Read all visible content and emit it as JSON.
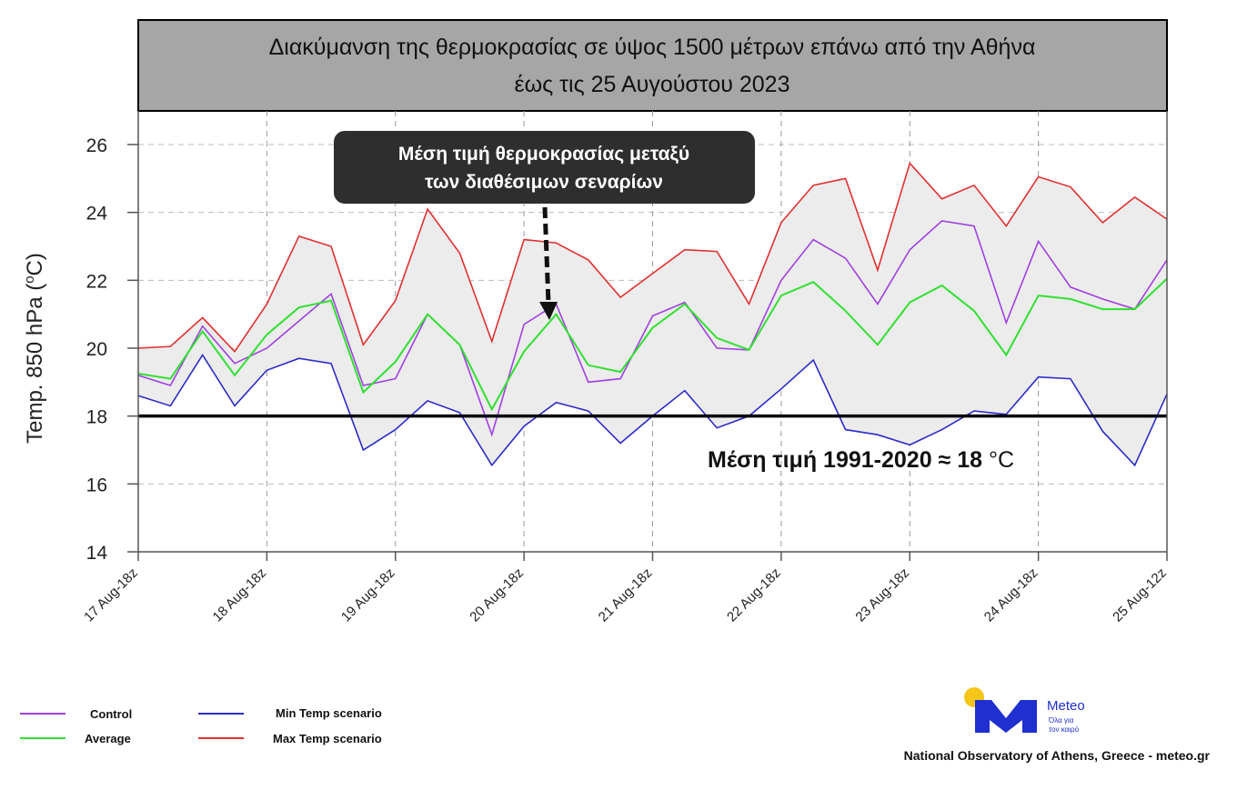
{
  "chart_data": {
    "type": "line",
    "title": [
      "Διακύμανση της θερμοκρασίας σε ύψος 1500 μέτρων επάνω από την Αθήνα",
      "έως τις 25 Αυγούστου 2023"
    ],
    "ylabel": "Temp. 850 hPa (°C)",
    "ylabel_parts": {
      "main": "Temp. 850 hPa (",
      "sup": "o",
      "unit": "C)"
    },
    "ylim": [
      14,
      26.7
    ],
    "yticks": [
      14,
      16,
      18,
      20,
      22,
      24,
      26
    ],
    "x_step": "6-hourly",
    "xtick_labels": [
      "17 Aug-18z",
      "18 Aug-18z",
      "19 Aug-18z",
      "20 Aug-18z",
      "21 Aug-18z",
      "22 Aug-18z",
      "23 Aug-18z",
      "24 Aug-18z",
      "25 Aug-12z"
    ],
    "grid": true,
    "series": [
      {
        "name": "Max Temp scenario",
        "color": "#e03030",
        "values": [
          20.0,
          20.05,
          20.9,
          19.9,
          21.3,
          23.3,
          23.0,
          20.1,
          21.4,
          24.1,
          22.8,
          20.2,
          23.2,
          23.1,
          22.6,
          21.5,
          22.2,
          22.9,
          22.85,
          21.3,
          23.7,
          24.8,
          25.0,
          22.3,
          25.45,
          24.4,
          24.8,
          23.6,
          25.05,
          24.75,
          23.7,
          24.45,
          23.8
        ]
      },
      {
        "name": "Min Temp scenario",
        "color": "#2b2bc8",
        "values": [
          18.6,
          18.3,
          19.8,
          18.3,
          19.35,
          19.7,
          19.55,
          17.0,
          17.6,
          18.45,
          18.1,
          16.55,
          17.7,
          18.4,
          18.15,
          17.2,
          18.0,
          18.75,
          17.65,
          18.0,
          18.8,
          19.65,
          17.6,
          17.45,
          17.15,
          17.6,
          18.15,
          18.05,
          19.15,
          19.1,
          17.55,
          16.55,
          18.65
        ]
      },
      {
        "name": "Control",
        "color": "#a040e0",
        "values": [
          19.2,
          18.9,
          20.65,
          19.55,
          20.0,
          20.8,
          21.6,
          18.9,
          19.1,
          21.0,
          20.1,
          17.45,
          20.7,
          21.3,
          19.0,
          19.1,
          20.95,
          21.35,
          20.0,
          19.95,
          22.0,
          23.2,
          22.65,
          21.3,
          22.9,
          23.75,
          23.6,
          20.75,
          23.15,
          21.8,
          21.45,
          21.15,
          22.6
        ]
      },
      {
        "name": "Average",
        "color": "#30e030",
        "values": [
          19.25,
          19.1,
          20.5,
          19.2,
          20.4,
          21.2,
          21.4,
          18.7,
          19.6,
          21.0,
          20.1,
          18.2,
          19.9,
          21.0,
          19.5,
          19.3,
          20.6,
          21.3,
          20.3,
          19.95,
          21.55,
          21.95,
          21.1,
          20.1,
          21.35,
          21.85,
          21.1,
          19.8,
          21.55,
          21.45,
          21.15,
          21.15,
          22.05
        ]
      }
    ],
    "reference_line": {
      "value": 18,
      "label": "Μέση τιμή 1991-2020 ≈ 18",
      "unit": "°C"
    },
    "annotation": [
      "Μέση τιμή θερμοκρασίας μεταξύ",
      "των διαθέσιμων σεναρίων"
    ],
    "legend": [
      {
        "label": "Control",
        "color": "#a040e0"
      },
      {
        "label": "Average",
        "color": "#30e030"
      },
      {
        "label": "Min Temp scenario",
        "color": "#2b2bc8"
      },
      {
        "label": "Max Temp scenario",
        "color": "#e03030"
      }
    ],
    "legend_position": "bottom-left"
  },
  "logo": {
    "name": "Meteo",
    "tagline": [
      "Όλα για",
      "τον καιρό"
    ]
  },
  "footer": "National Observatory of Athens, Greece - meteo.gr"
}
